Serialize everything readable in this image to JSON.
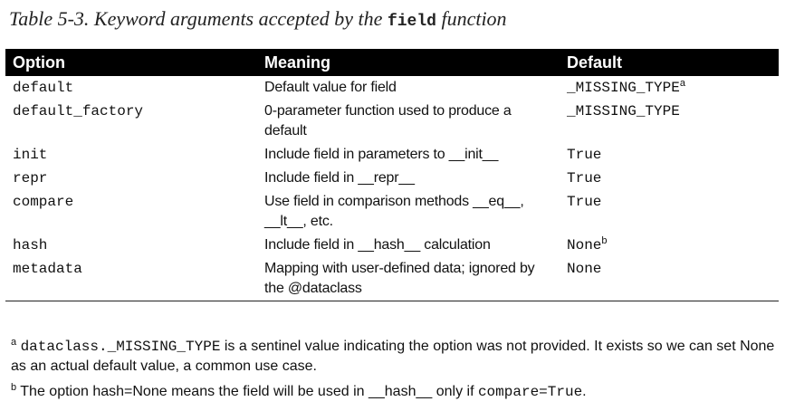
{
  "caption": {
    "prefix": "Table 5-3. Keyword arguments accepted by the",
    "code": "field",
    "suffix": "function"
  },
  "columns": [
    "Option",
    "Meaning",
    "Default"
  ],
  "rows": [
    {
      "option": "default",
      "meaning": "Default value for field",
      "default": "_MISSING_TYPE",
      "note": "a"
    },
    {
      "option": "default_factory",
      "meaning": "0-parameter function used to produce a default",
      "default": "_MISSING_TYPE",
      "note": ""
    },
    {
      "option": "init",
      "meaning": "Include field in parameters to __init__",
      "default": "True",
      "note": ""
    },
    {
      "option": "repr",
      "meaning": "Include field in __repr__",
      "default": "True",
      "note": ""
    },
    {
      "option": "compare",
      "meaning": "Use field in comparison methods __eq__, __lt__, etc.",
      "default": "True",
      "note": ""
    },
    {
      "option": "hash",
      "meaning": "Include field in __hash__ calculation",
      "default": "None",
      "note": "b"
    },
    {
      "option": "metadata",
      "meaning": "Mapping with user-defined data; ignored by the @dataclass",
      "default": "None",
      "note": ""
    }
  ],
  "footnotes": {
    "a": {
      "mark": "a",
      "code": "dataclass._MISSING_TYPE",
      "text": " is a sentinel value indicating the option was not provided. It exists so we can set None as an actual default value, a common use case."
    },
    "b": {
      "mark": "b",
      "prefix": " The option hash=None means the field will be used in ",
      "code_mid": "__hash__",
      "middle": " only if ",
      "code_end": "compare=True",
      "suffix": "."
    }
  }
}
